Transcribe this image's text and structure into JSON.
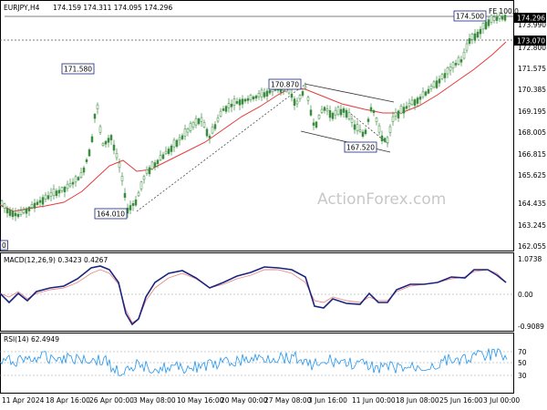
{
  "header": {
    "symbol": "EURJPY,H4",
    "ohlc": "174.159 174.311 174.095 174.296"
  },
  "watermark": "ActionForex.com",
  "price_axis": {
    "ticks": [
      "173.990",
      "172.800",
      "171.575",
      "170.385",
      "169.195",
      "168.005",
      "166.815",
      "165.625",
      "164.435",
      "163.245",
      "162.055"
    ],
    "current_price": "174.296",
    "level_price": "173.070"
  },
  "annotations": {
    "a171580": "171.580",
    "a170870": "170.870",
    "a167520": "167.520",
    "a164010": "164.010",
    "a174500": "174.500",
    "fe": "FE 100.0",
    "left_edge": "0"
  },
  "macd": {
    "label": "MACD(12,26,9) 0.3423 0.4267",
    "ticks": [
      "1.0738",
      "0.00",
      "-0.9089"
    ]
  },
  "rsi": {
    "label": "RSI(14) 62.4949",
    "ticks": [
      "70",
      "50",
      "30"
    ]
  },
  "time_axis": {
    "labels": [
      "11 Apr 2024",
      "18 Apr 16:00",
      "26 Apr 00:00",
      "3 May 08:00",
      "10 May 16:00",
      "20 May 00:00",
      "27 May 08:00",
      "3 Jun 16:00",
      "11 Jun 00:00",
      "18 Jun 08:00",
      "25 Jun 16:00",
      "3 Jul 00:00"
    ]
  },
  "colors": {
    "candles": "#3d8c40",
    "ma": "#e63b3b",
    "macd": "#1a237e",
    "signal": "#e88a8a",
    "rsi": "#2196f3",
    "label_box": "#1a237e"
  }
}
